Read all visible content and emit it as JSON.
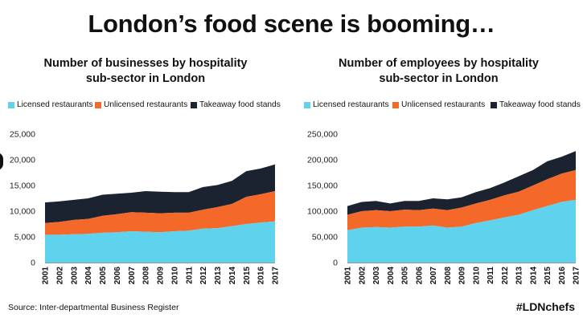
{
  "headline": "London’s food scene is booming…",
  "source": "Source: Inter-departmental Business Register",
  "hashtag": "#LDNchefs",
  "colors": {
    "licensed": "#5fd3ee",
    "unlicensed": "#f4692a",
    "takeaway": "#1b2230"
  },
  "chart_data": [
    {
      "type": "area",
      "stacked": true,
      "title": "Number of businesses by hospitality sub-sector in London",
      "title_lines": [
        "Number of businesses by hospitality",
        "sub-sector in London"
      ],
      "categories": [
        "2001",
        "2002",
        "2003",
        "2004",
        "2005",
        "2006",
        "2007",
        "2008",
        "2009",
        "2010",
        "2011",
        "2012",
        "2013",
        "2014",
        "2015",
        "2016",
        "2017"
      ],
      "y_ticks": [
        "0",
        "5,000",
        "10,000",
        "15,000",
        "20,000",
        "25,000"
      ],
      "ylim": [
        0,
        25000
      ],
      "grid": false,
      "legend_position": "top",
      "series": [
        {
          "name": "Licensed restaurants",
          "values": [
            5400,
            5400,
            5500,
            5600,
            5800,
            5900,
            6100,
            6000,
            5900,
            6100,
            6200,
            6600,
            6700,
            7100,
            7500,
            7800,
            8000
          ]
        },
        {
          "name": "Unlicensed restaurants",
          "values": [
            2300,
            2500,
            2800,
            2900,
            3300,
            3500,
            3700,
            3700,
            3700,
            3600,
            3500,
            3700,
            4100,
            4300,
            5300,
            5500,
            5900
          ]
        },
        {
          "name": "Takeaway food stands",
          "values": [
            4000,
            4000,
            3900,
            4000,
            4100,
            4000,
            3800,
            4200,
            4200,
            4000,
            4000,
            4400,
            4300,
            4500,
            5000,
            5000,
            5200
          ]
        }
      ]
    },
    {
      "type": "area",
      "stacked": true,
      "title": "Number of employees by hospitality sub-sector in London",
      "title_lines": [
        "Number of employees by hospitality",
        "sub-sector in London"
      ],
      "categories": [
        "2001",
        "2002",
        "2003",
        "2004",
        "2005",
        "2006",
        "2007",
        "2008",
        "2009",
        "2010",
        "2011",
        "2012",
        "2013",
        "2014",
        "2015",
        "2016",
        "2017"
      ],
      "y_ticks": [
        "0",
        "50,000",
        "100,000",
        "150,000",
        "200,000",
        "250,000"
      ],
      "ylim": [
        0,
        250000
      ],
      "grid": false,
      "legend_position": "top",
      "series": [
        {
          "name": "Licensed restaurants",
          "values": [
            63000,
            68000,
            69000,
            68000,
            70000,
            70000,
            72000,
            68000,
            70000,
            77000,
            82000,
            88000,
            93000,
            102000,
            110000,
            118000,
            122000
          ]
        },
        {
          "name": "Unlicensed restaurants",
          "values": [
            30000,
            32000,
            33000,
            32000,
            33000,
            32000,
            33000,
            34000,
            37000,
            38000,
            40000,
            43000,
            45000,
            48000,
            52000,
            55000,
            58000
          ]
        },
        {
          "name": "Takeaway food stands",
          "values": [
            17000,
            18000,
            18000,
            15000,
            17000,
            18000,
            20000,
            21000,
            20000,
            22000,
            23000,
            25000,
            30000,
            30000,
            35000,
            33000,
            37000
          ]
        }
      ]
    }
  ]
}
